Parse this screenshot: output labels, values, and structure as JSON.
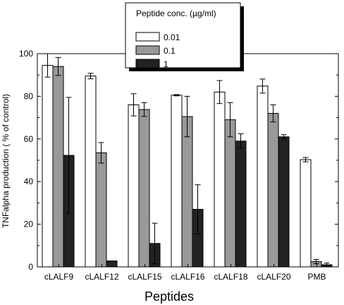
{
  "chart_data": {
    "type": "bar",
    "title": "",
    "xlabel": "Peptides",
    "ylabel": "TNFalpha production ( % of control)",
    "ylim": [
      0,
      100
    ],
    "yticks": [
      0,
      20,
      40,
      60,
      80,
      100
    ],
    "categories": [
      "cLALF9",
      "cLALF12",
      "cLALF15",
      "cLALF16",
      "cLALF18",
      "cLALF20",
      "PMB"
    ],
    "legend": {
      "title": "Peptide conc. (µg/ml)",
      "placement": "top-center"
    },
    "series": [
      {
        "name": "0.01",
        "color": "#ffffff",
        "values": [
          94.5,
          89.5,
          76,
          80.5,
          82,
          84.8,
          50.3
        ],
        "errors": [
          5.5,
          1.3,
          5.2,
          0.3,
          5.4,
          3.3,
          1.0
        ]
      },
      {
        "name": "0.1",
        "color": "#999999",
        "values": [
          94,
          53.5,
          73.8,
          70.5,
          69,
          72,
          2.5
        ],
        "errors": [
          4.2,
          4.8,
          3.2,
          9.5,
          8.0,
          4.0,
          1.0
        ]
      },
      {
        "name": "1",
        "color": "#222222",
        "values": [
          52.3,
          2.8,
          11,
          27,
          59,
          61,
          1.0
        ],
        "errors": [
          27.2,
          0,
          9.5,
          11.5,
          3.4,
          1.0,
          0.8
        ]
      }
    ]
  }
}
